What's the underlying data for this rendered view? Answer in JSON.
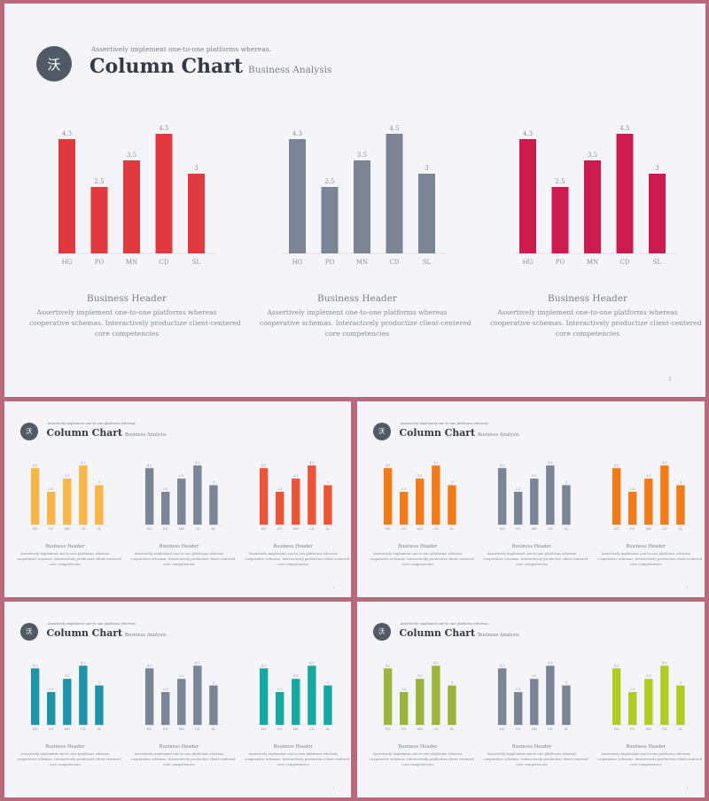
{
  "header": {
    "logo_glyph": "沃",
    "subtitle": "Assertively implement one-to-one platforms whereas.",
    "title": "Column Chart",
    "title_tag": "Business Analysis"
  },
  "block": {
    "heading": "Business Header",
    "body_line1": "Assertively implement one-to-one platforms whereas",
    "body_line2": "cooperative schemas. Interactively productize client-centered",
    "body_line3": "core competencies"
  },
  "page_number": "1",
  "neutral_color": "#7b8595",
  "slides": [
    {
      "id": "s0",
      "colors": [
        "#e03a40",
        "#7b8595",
        "#cc1b4e"
      ]
    },
    {
      "id": "s1",
      "colors": [
        "#f6b648",
        "#7b8595",
        "#ec5438"
      ]
    },
    {
      "id": "s2",
      "colors": [
        "#f47a17",
        "#7b8595",
        "#f47a17"
      ]
    },
    {
      "id": "s3",
      "colors": [
        "#1e93aa",
        "#7b8595",
        "#16a9a2"
      ]
    },
    {
      "id": "s4",
      "colors": [
        "#9cb43a",
        "#7b8595",
        "#b1cc25"
      ]
    }
  ],
  "chart_data": {
    "type": "bar",
    "categories": [
      "HG",
      "PO",
      "MN",
      "CD",
      "SL"
    ],
    "values": [
      4.3,
      2.5,
      3.5,
      4.5,
      3
    ],
    "value_labels": [
      "4.3",
      "2.5",
      "3.5",
      "4.5",
      "3"
    ],
    "ylim": [
      0,
      5
    ],
    "grid": false
  }
}
